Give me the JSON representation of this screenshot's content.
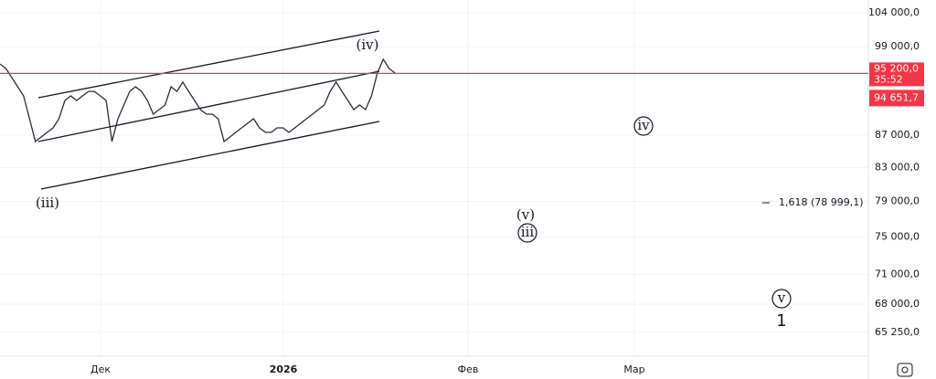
{
  "chart_data": {
    "type": "line",
    "log_scale": true,
    "grid": true,
    "ylim": [
      63030,
      105960
    ],
    "yticks": [
      {
        "value": 104000,
        "label": "104 000,0"
      },
      {
        "value": 99000,
        "label": "99 000,0"
      },
      {
        "value": 87000,
        "label": "87 000,0"
      },
      {
        "value": 83000,
        "label": "83 000,0"
      },
      {
        "value": 79000,
        "label": "79 000,0"
      },
      {
        "value": 75000,
        "label": "75 000,0"
      },
      {
        "value": 71000,
        "label": "71 000,0"
      },
      {
        "value": 68000,
        "label": "68 000,0"
      },
      {
        "value": 65250,
        "label": "65 250,0"
      }
    ],
    "xtick_labels": [
      "Дек",
      "2026",
      "Фев",
      "Мар"
    ],
    "series": [
      {
        "color": "#2a2e39",
        "values": [
          96520,
          95890,
          94620,
          93360,
          92130,
          89110,
          86200,
          86770,
          87360,
          87930,
          89110,
          91520,
          92130,
          91520,
          92130,
          92740,
          92740,
          92130,
          91520,
          86200,
          89110,
          90910,
          92740,
          93360,
          92740,
          91520,
          89710,
          90310,
          90910,
          93360,
          92740,
          94000,
          92740,
          91520,
          90310,
          89710,
          89710,
          89110,
          86200,
          86770,
          87360,
          87930,
          88520,
          89110,
          87930,
          87360,
          87360,
          87930,
          87930,
          87360,
          87930,
          88520,
          89110,
          89710,
          90310,
          90910,
          92740,
          94000,
          92740,
          91520,
          90310,
          90910,
          90310,
          92130,
          95250,
          97180,
          95890,
          95250
        ]
      }
    ],
    "price_line": {
      "value": 95200,
      "label": "95 200,0",
      "color": "#f23645"
    },
    "countdown": "35:52",
    "marker": {
      "value": 94651.7,
      "label": "94 651,7"
    },
    "annotations": [
      "(iii)",
      "(iv)",
      "(v)",
      "iii",
      "iv",
      "v",
      "1",
      "1,618 (78 999,1)"
    ]
  }
}
